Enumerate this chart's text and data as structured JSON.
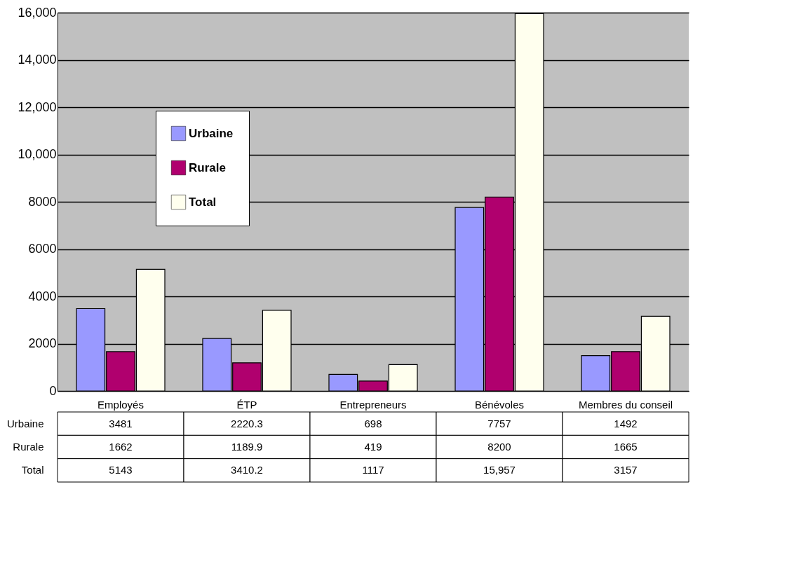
{
  "chart_data": {
    "type": "bar",
    "categories": [
      "Employés",
      "ÉTP",
      "Entrepreneurs",
      "Bénévoles",
      "Membres du conseil"
    ],
    "series": [
      {
        "name": "Urbaine",
        "color": "#9999ff",
        "values": [
          3481,
          2220.3,
          698,
          7757,
          1492
        ],
        "value_labels": [
          "3481",
          "2220.3",
          "698",
          "7757",
          "1492"
        ]
      },
      {
        "name": "Rurale",
        "color": "#b0006e",
        "values": [
          1662,
          1189.9,
          419,
          8200,
          1665
        ],
        "value_labels": [
          "1662",
          "1189.9",
          "419",
          "8200",
          "1665"
        ]
      },
      {
        "name": "Total",
        "color": "#ffffee",
        "values": [
          5143,
          3410.2,
          1117,
          15957,
          3157
        ],
        "value_labels": [
          "5143",
          "3410.2",
          "1117",
          "15,957",
          "3157"
        ]
      }
    ],
    "ylim": [
      0,
      16000
    ],
    "yticks": [
      0,
      2000,
      4000,
      6000,
      8000,
      {
        "value": 10000,
        "label": "10,000"
      },
      {
        "value": 12000,
        "label": "12,000"
      },
      {
        "value": 14000,
        "label": "14,000"
      },
      {
        "value": 16000,
        "label": "16,000"
      }
    ],
    "grid": "y",
    "legend": "top left"
  }
}
